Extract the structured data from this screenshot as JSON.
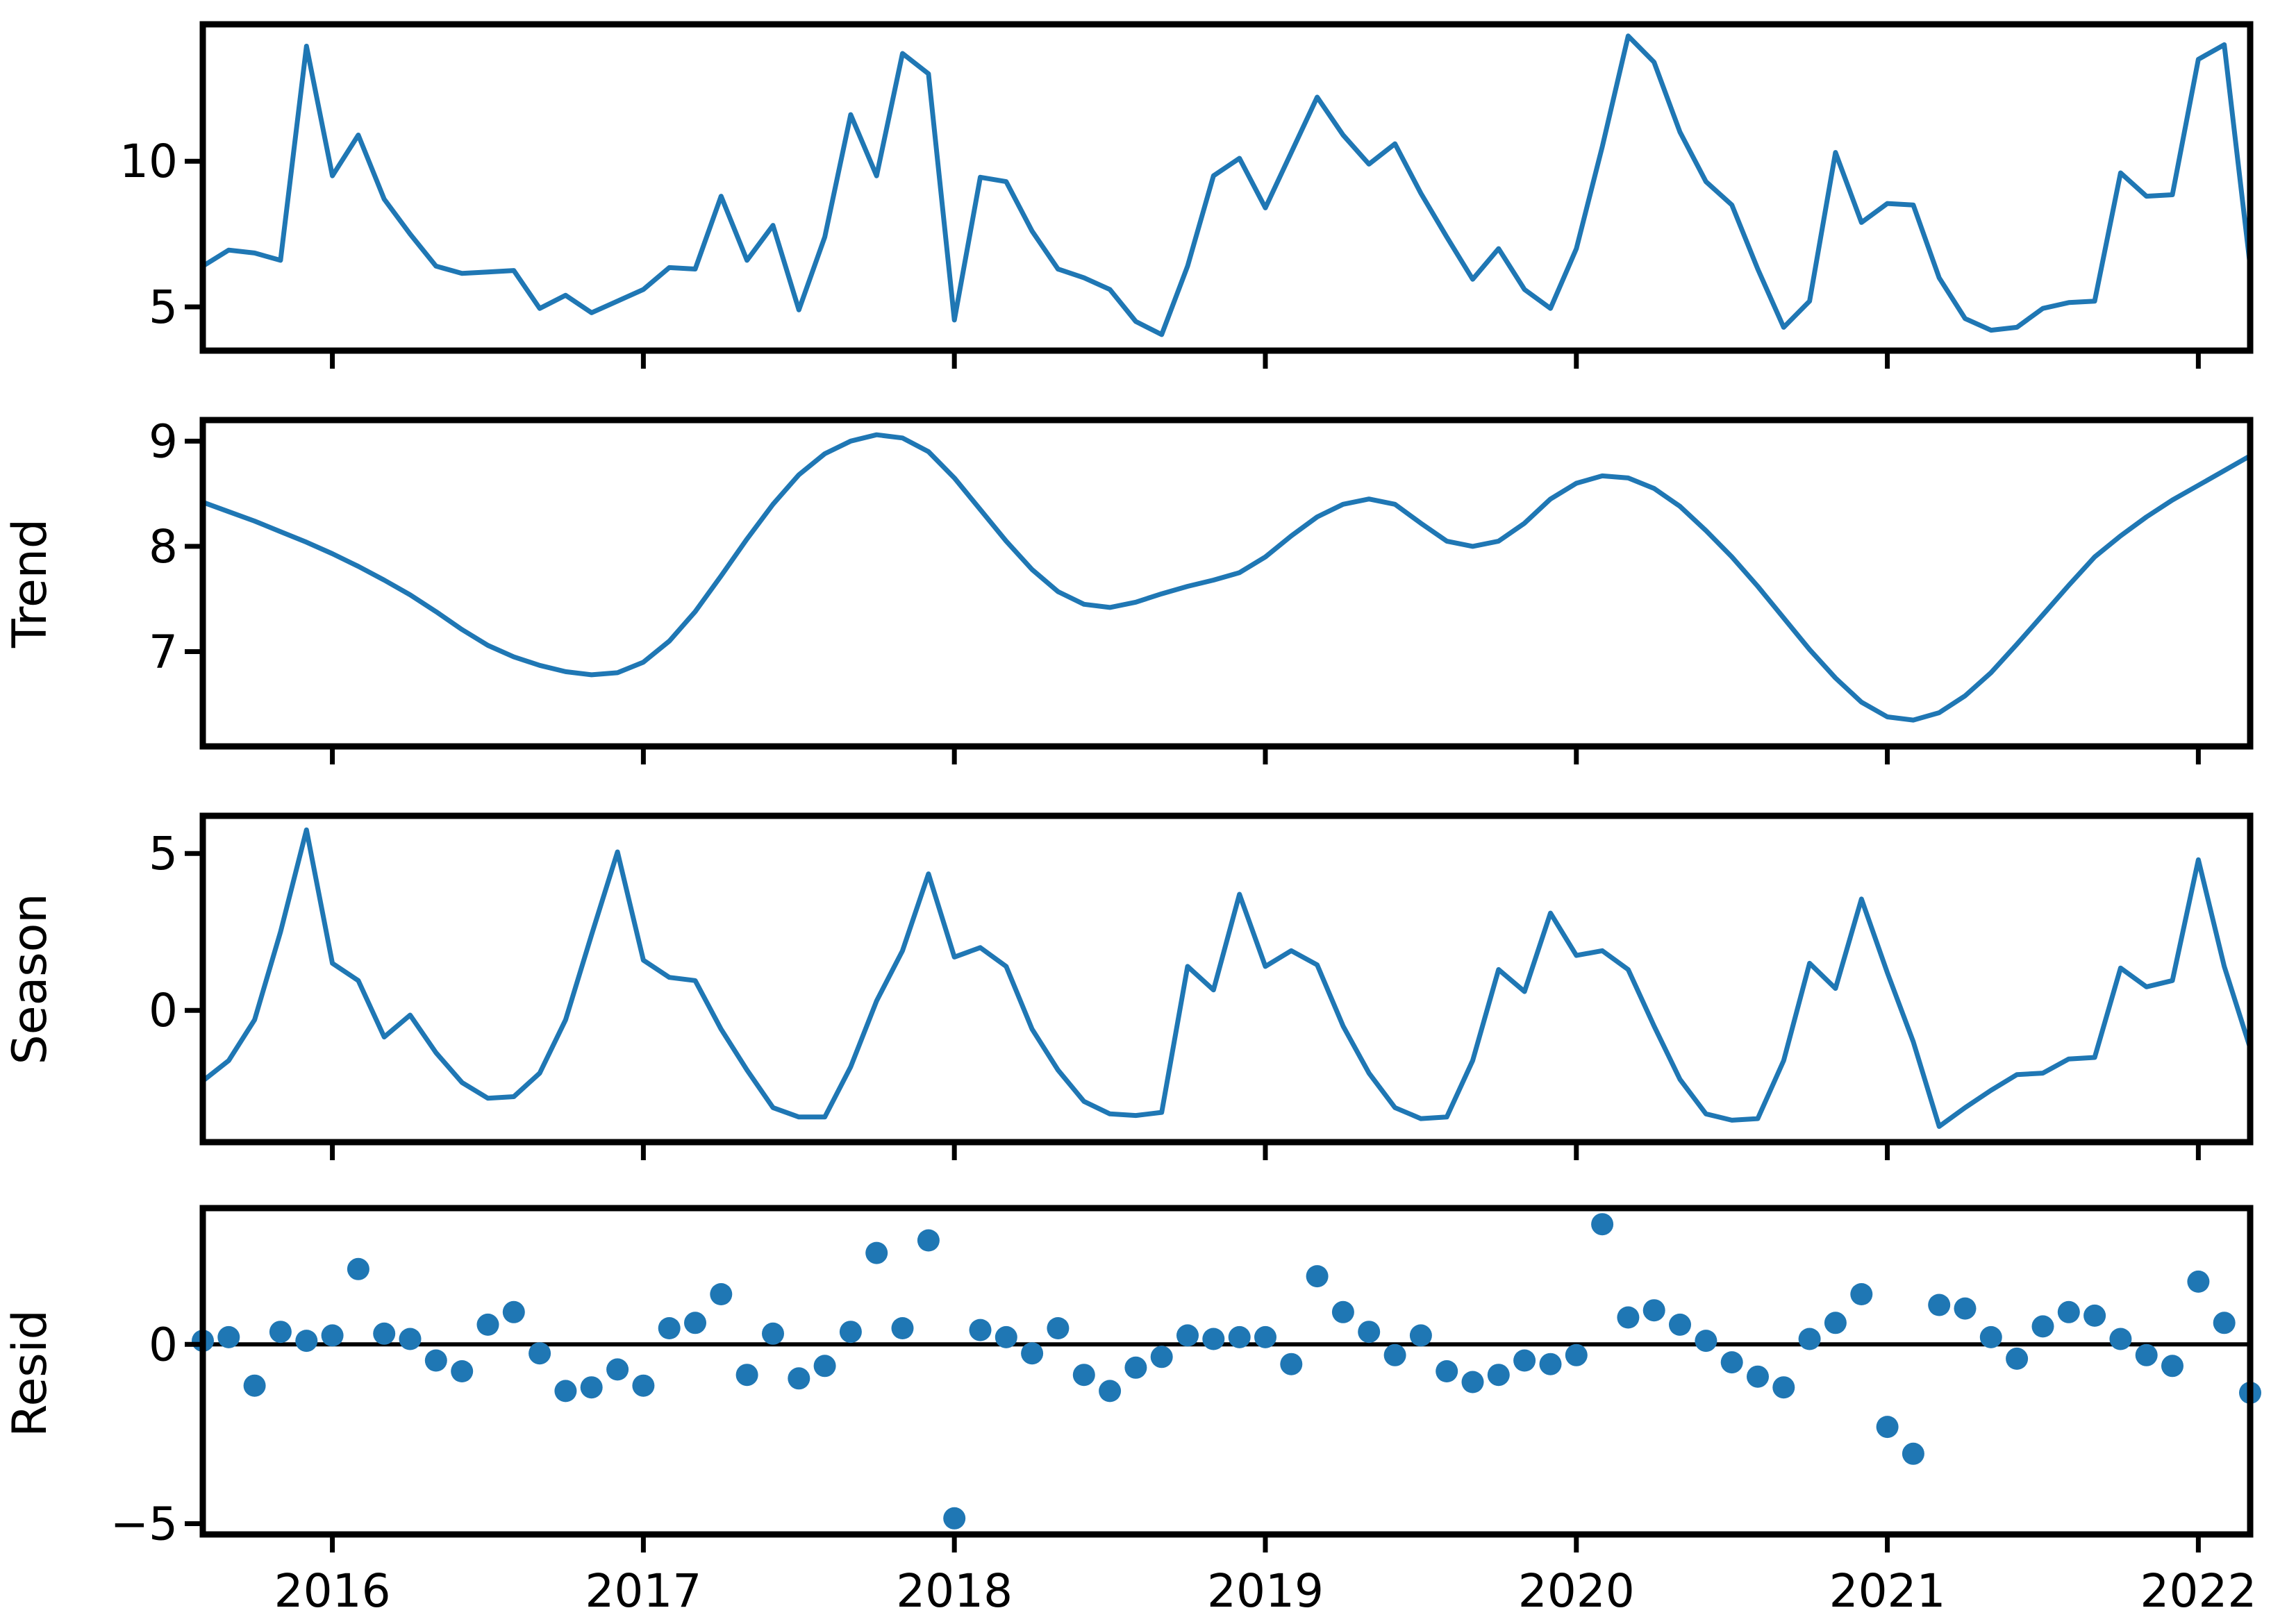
{
  "figure": {
    "kind": "seasonal-decomposition-plot",
    "frequency": "monthly",
    "start": {
      "year": 2015,
      "month": 8
    },
    "n_points": 80
  },
  "colors": {
    "series": "#1f77b4",
    "axes": "#000000",
    "zero_line": "#000000",
    "background": "#ffffff"
  },
  "chart_data": {
    "type": "line",
    "title": "",
    "xlabel": "",
    "x_start_decimal_year": 2015.58333,
    "x_end_decimal_year": 2022.16667,
    "x_tick_values": [
      2016,
      2017,
      2018,
      2019,
      2020,
      2021,
      2022
    ],
    "x_tick_labels": [
      "2016",
      "2017",
      "2018",
      "2019",
      "2020",
      "2021",
      "2022"
    ],
    "grid": false,
    "legend": false,
    "panels": [
      {
        "id": "observed",
        "ylabel": "",
        "plot": "line",
        "ylim": [
          3.5,
          14.7
        ],
        "ytick_values": [
          5,
          10
        ],
        "ytick_labels": [
          "5",
          "10"
        ],
        "values": [
          6.4,
          6.95,
          6.85,
          6.6,
          13.95,
          9.5,
          10.9,
          8.7,
          7.5,
          6.4,
          6.15,
          6.2,
          6.25,
          4.95,
          5.4,
          4.8,
          5.2,
          5.6,
          6.35,
          6.3,
          8.8,
          6.6,
          7.8,
          4.9,
          7.4,
          11.6,
          9.5,
          13.7,
          13.0,
          4.55,
          9.45,
          9.3,
          7.6,
          6.3,
          6.0,
          5.6,
          4.5,
          4.05,
          6.4,
          9.5,
          10.1,
          8.4,
          10.3,
          12.2,
          10.9,
          9.9,
          10.6,
          8.9,
          7.4,
          5.95,
          7.0,
          5.6,
          4.95,
          7.0,
          10.5,
          14.3,
          13.4,
          11.0,
          9.3,
          8.5,
          6.3,
          4.3,
          5.2,
          10.3,
          7.9,
          8.55,
          8.5,
          6.0,
          4.6,
          4.2,
          4.3,
          4.95,
          5.15,
          5.2,
          9.6,
          8.8,
          8.85,
          13.5,
          14.0,
          6.4
        ]
      },
      {
        "id": "trend",
        "ylabel": "Trend",
        "plot": "line",
        "ylim": [
          6.1,
          9.2
        ],
        "ytick_values": [
          7,
          8,
          9
        ],
        "ytick_labels": [
          "7",
          "8",
          "9"
        ],
        "values": [
          8.42,
          8.33,
          8.24,
          8.14,
          8.04,
          7.93,
          7.81,
          7.68,
          7.54,
          7.38,
          7.21,
          7.06,
          6.95,
          6.87,
          6.81,
          6.78,
          6.8,
          6.9,
          7.1,
          7.38,
          7.72,
          8.07,
          8.4,
          8.68,
          8.88,
          9.0,
          9.06,
          9.03,
          8.9,
          8.65,
          8.35,
          8.05,
          7.78,
          7.57,
          7.45,
          7.42,
          7.47,
          7.55,
          7.62,
          7.68,
          7.75,
          7.9,
          8.1,
          8.28,
          8.4,
          8.45,
          8.4,
          8.22,
          8.05,
          8.0,
          8.05,
          8.22,
          8.45,
          8.6,
          8.67,
          8.65,
          8.55,
          8.38,
          8.15,
          7.9,
          7.62,
          7.32,
          7.02,
          6.75,
          6.52,
          6.38,
          6.35,
          6.42,
          6.58,
          6.8,
          7.07,
          7.35,
          7.63,
          7.9,
          8.1,
          8.28,
          8.44,
          8.58,
          8.72,
          8.86
        ]
      },
      {
        "id": "season",
        "ylabel": "Season",
        "plot": "line",
        "ylim": [
          -4.2,
          6.2
        ],
        "ytick_values": [
          0,
          5
        ],
        "ytick_labels": [
          "0",
          "5"
        ],
        "values": [
          -2.25,
          -1.6,
          -0.3,
          2.5,
          5.75,
          1.5,
          0.95,
          -0.85,
          -0.15,
          -1.35,
          -2.3,
          -2.8,
          -2.75,
          -2.0,
          -0.3,
          2.4,
          5.05,
          1.6,
          1.05,
          0.95,
          -0.6,
          -1.9,
          -3.1,
          -3.4,
          -3.4,
          -1.8,
          0.3,
          1.9,
          4.35,
          1.7,
          2.0,
          1.4,
          -0.6,
          -1.9,
          -2.9,
          -3.3,
          -3.35,
          -3.25,
          1.4,
          0.65,
          3.7,
          1.4,
          1.9,
          1.45,
          -0.5,
          -2.0,
          -3.1,
          -3.45,
          -3.4,
          -1.6,
          1.3,
          0.6,
          3.1,
          1.75,
          1.9,
          1.3,
          -0.5,
          -2.2,
          -3.3,
          -3.5,
          -3.45,
          -1.6,
          1.5,
          0.7,
          3.55,
          1.2,
          -1.0,
          -3.7,
          -3.1,
          -2.55,
          -2.05,
          -2.0,
          -1.55,
          -1.5,
          1.35,
          0.75,
          0.95,
          4.8,
          1.4,
          -1.2
        ]
      },
      {
        "id": "resid",
        "ylabel": "Resid",
        "plot": "scatter",
        "ylim": [
          -5.3,
          3.8
        ],
        "ytick_values": [
          -5,
          0
        ],
        "ytick_labels": [
          "−5",
          "0"
        ],
        "zero_line": 0,
        "values": [
          0.1,
          0.2,
          -1.15,
          0.35,
          0.1,
          0.25,
          2.1,
          0.3,
          0.15,
          -0.45,
          -0.75,
          0.55,
          0.9,
          -0.25,
          -1.3,
          -1.2,
          -0.7,
          -1.15,
          0.45,
          0.6,
          1.4,
          -0.85,
          0.3,
          -0.95,
          -0.6,
          0.35,
          2.55,
          0.45,
          2.9,
          -4.85,
          0.4,
          0.2,
          -0.25,
          0.45,
          -0.85,
          -1.3,
          -0.65,
          -0.35,
          0.25,
          0.15,
          0.2,
          0.2,
          -0.55,
          1.9,
          0.9,
          0.35,
          -0.3,
          0.25,
          -0.75,
          -1.05,
          -0.85,
          -0.45,
          -0.55,
          -0.3,
          3.35,
          0.75,
          0.95,
          0.55,
          0.1,
          -0.5,
          -0.9,
          -1.2,
          0.15,
          0.6,
          1.4,
          -2.3,
          -3.05,
          1.1,
          1.0,
          0.2,
          -0.4,
          0.5,
          0.9,
          0.8,
          0.15,
          -0.3,
          -0.6,
          1.75,
          0.6,
          -1.35
        ]
      }
    ]
  }
}
